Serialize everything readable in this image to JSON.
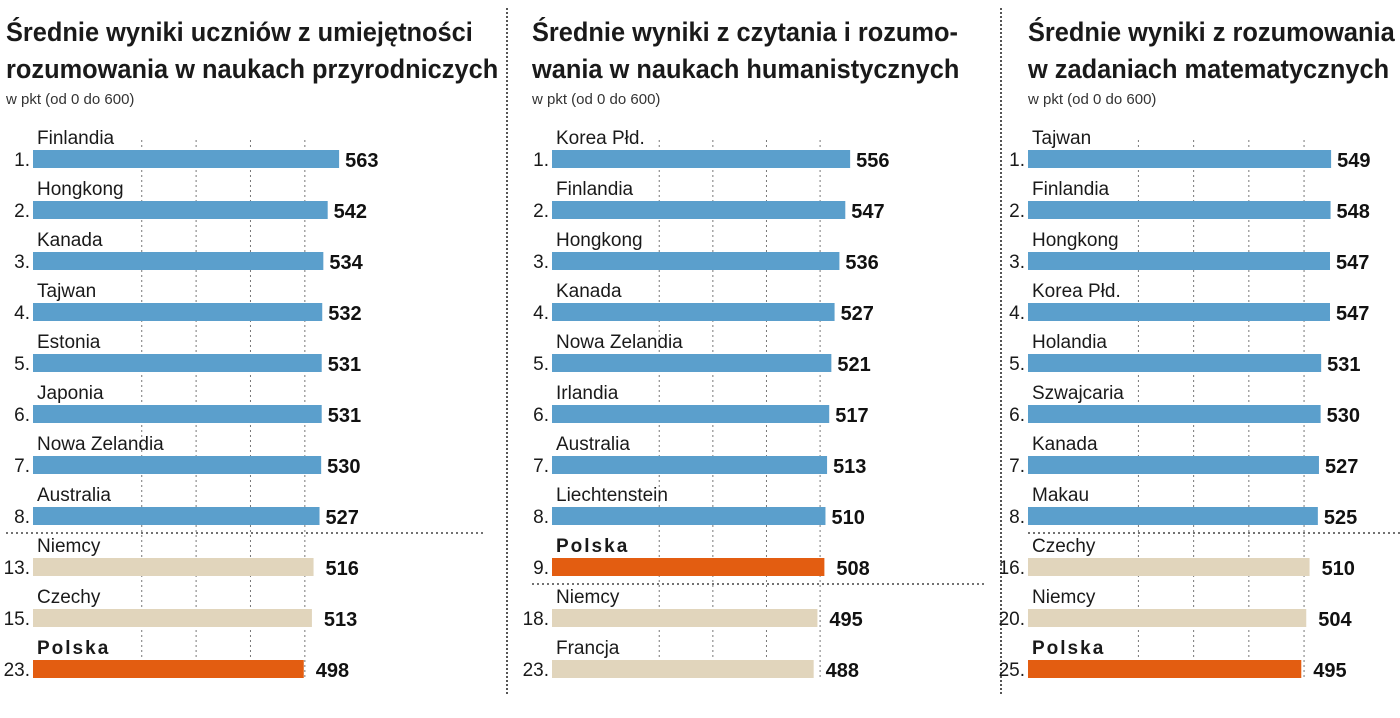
{
  "colors": {
    "top": "#5b9fcc",
    "other": "#e1d5bc",
    "poland": "#e35d11"
  },
  "chart_data": [
    {
      "type": "bar",
      "title": "Średnie wyniki uczniów z umiejętności rozumowania w naukach przyrodniczych",
      "title_lines": [
        "Średnie wyniki uczniów z umiejętności",
        "rozumowania w naukach przyrodniczych"
      ],
      "subtitle": "w pkt (od 0 do 600)",
      "xlim": [
        0,
        600
      ],
      "gridlines": [
        200,
        300,
        400,
        500
      ],
      "rows": [
        {
          "rank": "1.",
          "country": "Finlandia",
          "value": 563,
          "group": "top"
        },
        {
          "rank": "2.",
          "country": "Hongkong",
          "value": 542,
          "group": "top"
        },
        {
          "rank": "3.",
          "country": "Kanada",
          "value": 534,
          "group": "top"
        },
        {
          "rank": "4.",
          "country": "Tajwan",
          "value": 532,
          "group": "top"
        },
        {
          "rank": "5.",
          "country": "Estonia",
          "value": 531,
          "group": "top"
        },
        {
          "rank": "6.",
          "country": "Japonia",
          "value": 531,
          "group": "top"
        },
        {
          "rank": "7.",
          "country": "Nowa Zelandia",
          "value": 530,
          "group": "top"
        },
        {
          "rank": "8.",
          "country": "Australia",
          "value": 527,
          "group": "top"
        },
        {
          "rank": "13.",
          "country": "Niemcy",
          "value": 516,
          "group": "other"
        },
        {
          "rank": "15.",
          "country": "Czechy",
          "value": 513,
          "group": "other"
        },
        {
          "rank": "23.",
          "country": "Polska",
          "value": 498,
          "group": "poland"
        }
      ]
    },
    {
      "type": "bar",
      "title": "Średnie wyniki z czytania i rozumowania w naukach humanistycznych",
      "title_lines": [
        "Średnie wyniki z czytania i rozumo-",
        "wania w naukach humanistycznych"
      ],
      "subtitle": "w pkt (od 0 do 600)",
      "xlim": [
        0,
        600
      ],
      "gridlines": [
        200,
        300,
        400,
        500
      ],
      "rows": [
        {
          "rank": "1.",
          "country": "Korea Płd.",
          "value": 556,
          "group": "top"
        },
        {
          "rank": "2.",
          "country": "Finlandia",
          "value": 547,
          "group": "top"
        },
        {
          "rank": "3.",
          "country": "Hongkong",
          "value": 536,
          "group": "top"
        },
        {
          "rank": "4.",
          "country": "Kanada",
          "value": 527,
          "group": "top"
        },
        {
          "rank": "5.",
          "country": "Nowa Zelandia",
          "value": 521,
          "group": "top"
        },
        {
          "rank": "6.",
          "country": "Irlandia",
          "value": 517,
          "group": "top"
        },
        {
          "rank": "7.",
          "country": "Australia",
          "value": 513,
          "group": "top"
        },
        {
          "rank": "8.",
          "country": "Liechtenstein",
          "value": 510,
          "group": "top"
        },
        {
          "rank": "9.",
          "country": "Polska",
          "value": 508,
          "group": "poland"
        },
        {
          "rank": "18.",
          "country": "Niemcy",
          "value": 495,
          "group": "other"
        },
        {
          "rank": "23.",
          "country": "Francja",
          "value": 488,
          "group": "other"
        }
      ]
    },
    {
      "type": "bar",
      "title": "Średnie wyniki z rozumowania w zadaniach matematycznych",
      "title_lines": [
        "Średnie wyniki z rozumowania",
        "w zadaniach matematycznych"
      ],
      "subtitle": "w pkt (od 0 do 600)",
      "xlim": [
        0,
        600
      ],
      "gridlines": [
        200,
        300,
        400,
        500
      ],
      "rows": [
        {
          "rank": "1.",
          "country": "Tajwan",
          "value": 549,
          "group": "top"
        },
        {
          "rank": "2.",
          "country": "Finlandia",
          "value": 548,
          "group": "top"
        },
        {
          "rank": "3.",
          "country": "Hongkong",
          "value": 547,
          "group": "top"
        },
        {
          "rank": "4.",
          "country": "Korea Płd.",
          "value": 547,
          "group": "top"
        },
        {
          "rank": "5.",
          "country": "Holandia",
          "value": 531,
          "group": "top"
        },
        {
          "rank": "6.",
          "country": "Szwajcaria",
          "value": 530,
          "group": "top"
        },
        {
          "rank": "7.",
          "country": "Kanada",
          "value": 527,
          "group": "top"
        },
        {
          "rank": "8.",
          "country": "Makau",
          "value": 525,
          "group": "top"
        },
        {
          "rank": "16.",
          "country": "Czechy",
          "value": 510,
          "group": "other"
        },
        {
          "rank": "20.",
          "country": "Niemcy",
          "value": 504,
          "group": "other"
        },
        {
          "rank": "25.",
          "country": "Polska",
          "value": 495,
          "group": "poland"
        }
      ]
    }
  ]
}
